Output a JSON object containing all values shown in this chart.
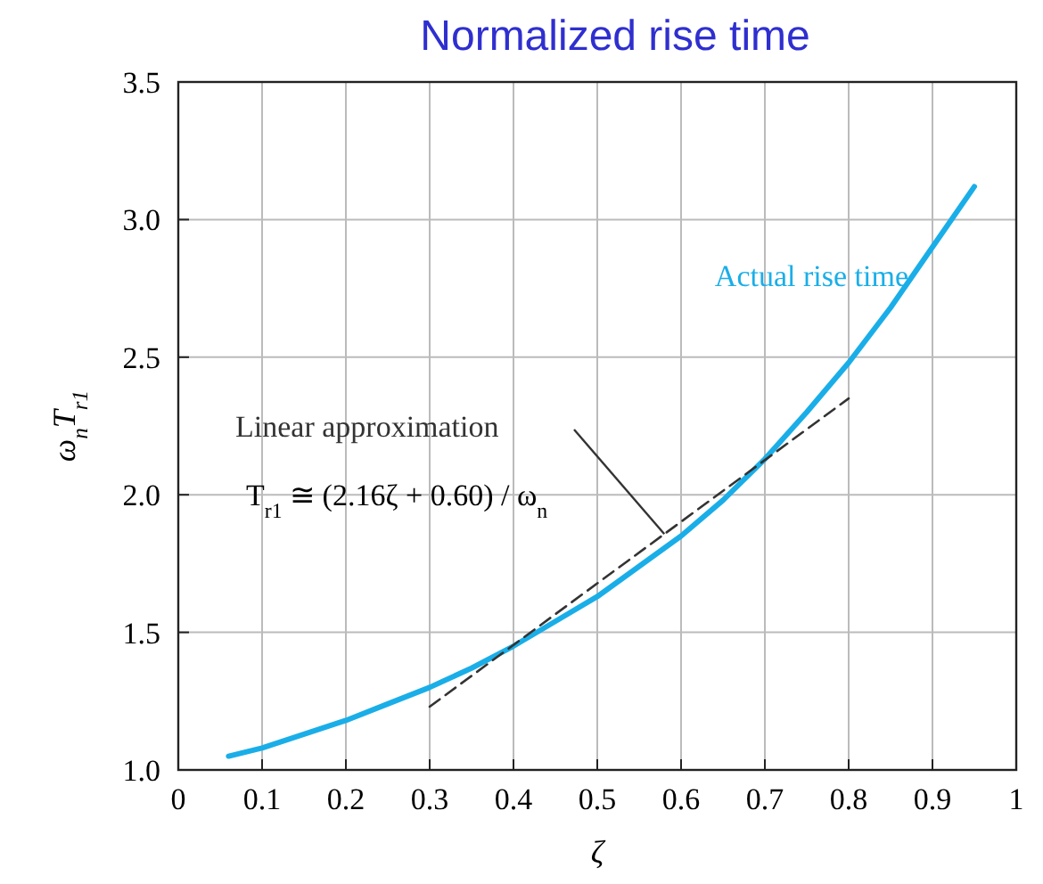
{
  "chart_data": {
    "type": "line",
    "title": "Normalized rise time",
    "xlabel": "ζ",
    "ylabel": "ω$_{n}$T$_{r1}$",
    "xlim": [
      0,
      1
    ],
    "ylim": [
      1,
      3.5
    ],
    "xticks": [
      0,
      0.1,
      0.2,
      0.3,
      0.4,
      0.5,
      0.6,
      0.7,
      0.8,
      0.9,
      1
    ],
    "yticks": [
      {
        "value": 1,
        "label": "1.0"
      },
      {
        "value": 1.5,
        "label": "1.5"
      },
      {
        "value": 2,
        "label": "2.0"
      },
      {
        "value": 2.5,
        "label": "2.5"
      },
      {
        "value": 3,
        "label": "3.0"
      },
      {
        "value": 3.5,
        "label": "3.5"
      }
    ],
    "grid": true,
    "series": [
      {
        "name": "Actual rise time",
        "color": "#1aaee8",
        "x": [
          0.06,
          0.1,
          0.15,
          0.2,
          0.25,
          0.3,
          0.35,
          0.4,
          0.45,
          0.5,
          0.55,
          0.6,
          0.65,
          0.7,
          0.75,
          0.8,
          0.85,
          0.9,
          0.95
        ],
        "values": [
          1.05,
          1.08,
          1.13,
          1.18,
          1.24,
          1.3,
          1.37,
          1.45,
          1.54,
          1.63,
          1.74,
          1.85,
          1.98,
          2.13,
          2.3,
          2.48,
          2.68,
          2.9,
          3.12
        ]
      },
      {
        "name": "Linear approximation",
        "color": "#333333",
        "line_style": "dashed",
        "x": [
          0.3,
          0.8
        ],
        "values": [
          1.23,
          2.35
        ]
      }
    ],
    "annotations": [
      "T$_{r1}$ ≅ (2.16ζ + 0.60) / ω$_{n}$"
    ]
  }
}
